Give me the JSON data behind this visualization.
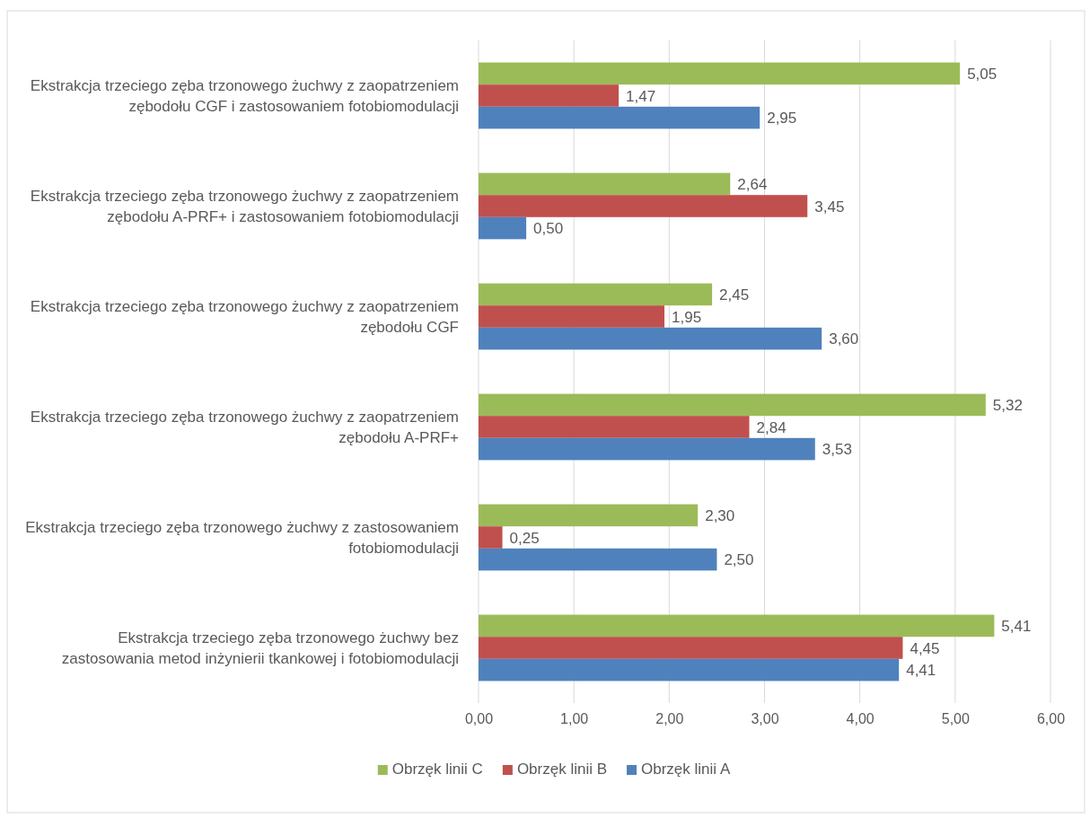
{
  "chart_data": {
    "type": "bar",
    "orientation": "horizontal",
    "categories": [
      "Ekstrakcja trzeciego zęba trzonowego żuchwy z zaopatrzeniem zębodołu CGF i zastosowaniem fotobiomodulacji",
      "Ekstrakcja trzeciego zęba trzonowego żuchwy z zaopatrzeniem zębodołu A-PRF+ i zastosowaniem fotobiomodulacji",
      "Ekstrakcja trzeciego zęba trzonowego żuchwy z zaopatrzeniem zębodołu CGF",
      "Ekstrakcja trzeciego zęba trzonowego żuchwy z zaopatrzeniem zębodołu A-PRF+",
      "Ekstrakcja trzeciego zęba trzonowego żuchwy z zastosowaniem fotobiomodulacji",
      "Ekstrakcja trzeciego zęba trzonowego żuchwy bez zastosowania metod inżynierii tkankowej i fotobiomodulacji"
    ],
    "series": [
      {
        "name": "Obrzęk linii C",
        "color": "#9bbb59",
        "values": [
          5.05,
          2.64,
          2.45,
          5.32,
          2.3,
          5.41
        ],
        "value_labels": [
          "5,05",
          "2,64",
          "2,45",
          "5,32",
          "2,30",
          "5,41"
        ]
      },
      {
        "name": "Obrzęk linii B",
        "color": "#c0504d",
        "values": [
          1.47,
          3.45,
          1.95,
          2.84,
          0.25,
          4.45
        ],
        "value_labels": [
          "1,47",
          "3,45",
          "1,95",
          "2,84",
          "0,25",
          "4,45"
        ]
      },
      {
        "name": "Obrzęk linii A",
        "color": "#4f81bd",
        "values": [
          2.95,
          0.5,
          3.6,
          3.53,
          2.5,
          4.41
        ],
        "value_labels": [
          "2,95",
          "0,50",
          "3,60",
          "3,53",
          "2,50",
          "4,41"
        ]
      }
    ],
    "xlim": [
      0,
      6
    ],
    "xticks": [
      {
        "value": 0,
        "label": "0,00"
      },
      {
        "value": 1,
        "label": "1,00"
      },
      {
        "value": 2,
        "label": "2,00"
      },
      {
        "value": 3,
        "label": "3,00"
      },
      {
        "value": 4,
        "label": "4,00"
      },
      {
        "value": 5,
        "label": "5,00"
      },
      {
        "value": 6,
        "label": "6,00"
      }
    ],
    "grid": "x",
    "legend": "bottom"
  }
}
